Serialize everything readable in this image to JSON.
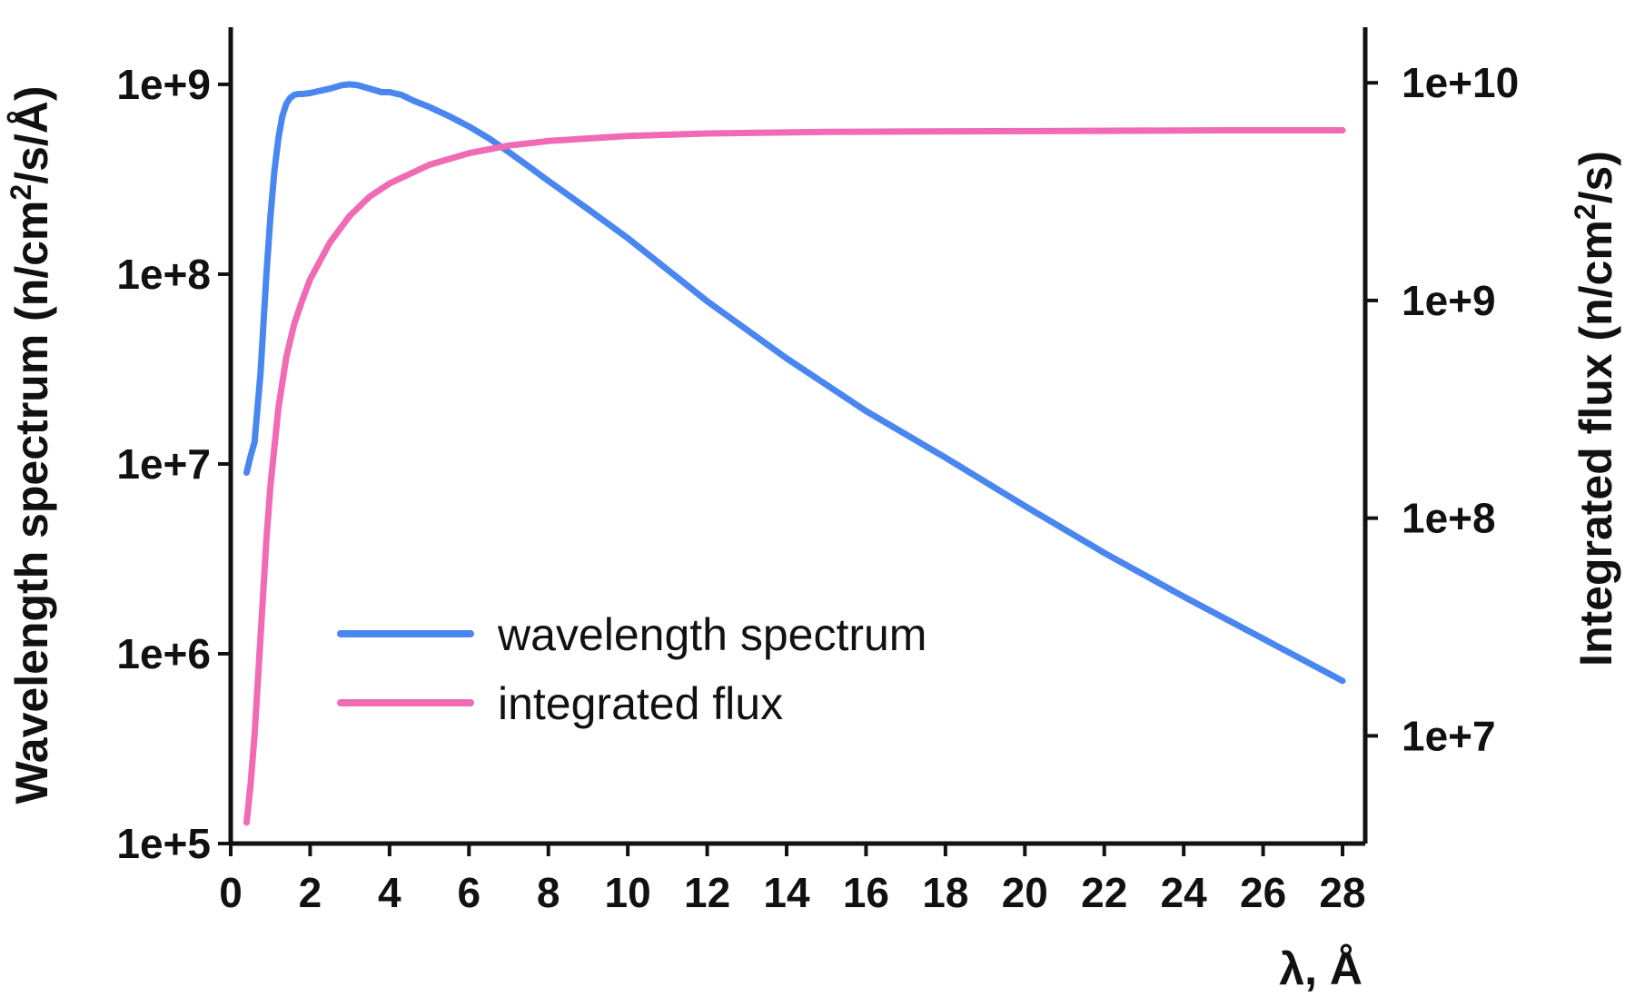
{
  "chart_data": {
    "type": "line",
    "xlabel": "λ, Å",
    "ylabel_left": {
      "text": "Wavelength spectrum (n/cm",
      "sup": "2",
      "tail": "/s/Å)"
    },
    "ylabel_right": {
      "text": "Integrated flux (n/cm",
      "sup": "2",
      "tail": "/s)"
    },
    "x_ticks": [
      0,
      2,
      4,
      6,
      8,
      10,
      12,
      14,
      16,
      18,
      20,
      22,
      24,
      26,
      28
    ],
    "xlim": [
      0,
      28.2
    ],
    "y_left": {
      "scale": "log",
      "lim": [
        100000,
        2000000000
      ],
      "ticks": [
        100000,
        1000000,
        10000000,
        100000000,
        1000000000
      ],
      "tick_labels": [
        "1e+5",
        "1e+6",
        "1e+7",
        "1e+8",
        "1e+9"
      ]
    },
    "y_right": {
      "scale": "log",
      "lim": [
        3200000,
        18000000000
      ],
      "ticks": [
        10000000,
        100000000,
        1000000000,
        10000000000
      ],
      "tick_labels": [
        "1e+7",
        "1e+8",
        "1e+9",
        "1e+10"
      ]
    },
    "legend": {
      "position": "lower-left"
    },
    "series": [
      {
        "name": "wavelength spectrum",
        "axis": "left",
        "color": "#4a86f0",
        "x": [
          0.4,
          0.5,
          0.6,
          0.75,
          0.9,
          1.0,
          1.1,
          1.2,
          1.3,
          1.4,
          1.5,
          1.6,
          1.7,
          1.8,
          2.0,
          2.2,
          2.5,
          2.8,
          3.0,
          3.2,
          3.5,
          3.8,
          4.0,
          4.3,
          4.6,
          5.0,
          5.5,
          6.0,
          6.5,
          7.0,
          7.5,
          8.0,
          9.0,
          10.0,
          12.0,
          14.0,
          16.0,
          18.0,
          20.0,
          22.0,
          24.0,
          26.0,
          28.0
        ],
        "y": [
          9000000,
          11000000,
          13000000,
          30000000,
          100000000,
          200000000,
          350000000,
          520000000,
          680000000,
          790000000,
          850000000,
          880000000,
          890000000,
          890000000,
          900000000,
          920000000,
          950000000,
          990000000,
          1000000000,
          990000000,
          950000000,
          910000000,
          910000000,
          880000000,
          820000000,
          760000000,
          680000000,
          600000000,
          520000000,
          440000000,
          370000000,
          310000000,
          220000000,
          155000000,
          72000000,
          36000000,
          19000000,
          10800000,
          6000000,
          3400000,
          2000000,
          1200000,
          720000
        ]
      },
      {
        "name": "integrated flux",
        "axis": "right",
        "color": "#f06ab4",
        "x": [
          0.4,
          0.5,
          0.6,
          0.7,
          0.8,
          0.9,
          1.0,
          1.2,
          1.4,
          1.6,
          1.8,
          2.0,
          2.5,
          3.0,
          3.5,
          4.0,
          5.0,
          6.0,
          7.0,
          8.0,
          10.0,
          12.0,
          15.0,
          20.0,
          25.0,
          28.0
        ],
        "y": [
          4000000,
          6000000,
          10000000,
          20000000,
          40000000,
          80000000,
          140000000,
          320000000,
          550000000,
          780000000,
          1000000000,
          1250000000,
          1850000000,
          2450000000,
          3000000000,
          3450000000,
          4200000000,
          4750000000,
          5150000000,
          5400000000,
          5700000000,
          5850000000,
          5950000000,
          6000000000,
          6050000000,
          6050000000
        ]
      }
    ]
  }
}
